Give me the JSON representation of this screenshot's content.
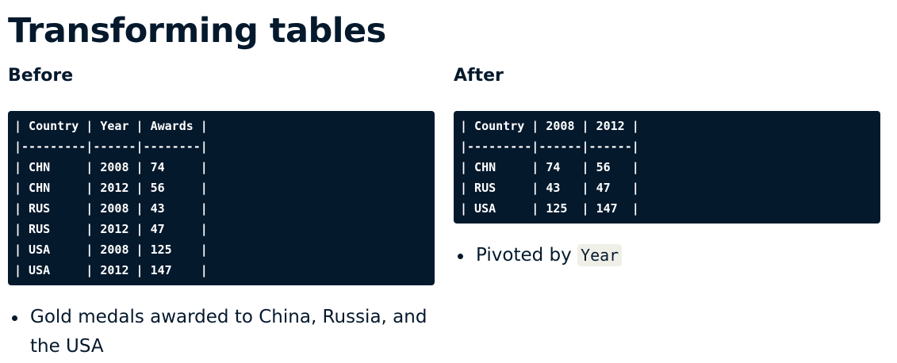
{
  "title": "Transforming tables",
  "before": {
    "heading": "Before",
    "code_lines": [
      "| Country | Year | Awards |",
      "|---------|------|--------|",
      "| CHN     | 2008 | 74     |",
      "| CHN     | 2012 | 56     |",
      "| RUS     | 2008 | 43     |",
      "| RUS     | 2012 | 47     |",
      "| USA     | 2008 | 125    |",
      "| USA     | 2012 | 147    |"
    ],
    "bullet": "Gold medals awarded to China, Russia, and the USA"
  },
  "after": {
    "heading": "After",
    "code_lines": [
      "| Country | 2008 | 2012 |",
      "|---------|------|------|",
      "| CHN     | 74   | 56   |",
      "| RUS     | 43   | 47   |",
      "| USA     | 125  | 147  |"
    ],
    "bullet_text": "Pivoted by",
    "bullet_code": "Year"
  },
  "colors": {
    "text": "#05192d",
    "code_bg": "#05192d",
    "code_text": "#ffffff",
    "inline_code_bg": "#efefe8"
  }
}
